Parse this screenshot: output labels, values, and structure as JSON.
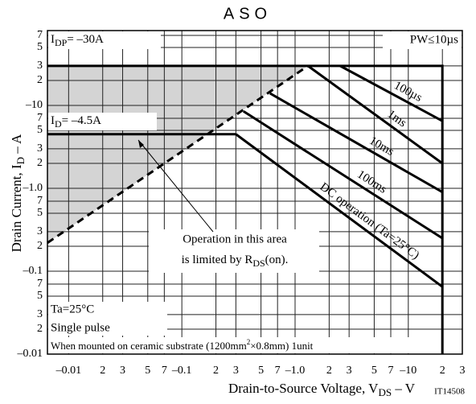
{
  "chart_data": {
    "type": "line",
    "title": "ASO",
    "xlabel": [
      "Drain-to-Source Voltage, V",
      "DS",
      " – V"
    ],
    "ylabel": [
      "Drain Current, I",
      "D",
      " – A"
    ],
    "x_scale": "log",
    "y_scale": "log",
    "xlim": [
      0.0065,
      30
    ],
    "ylim": [
      0.01,
      80
    ],
    "xticks": [
      {
        "value": 0.01,
        "label": "–0.01"
      },
      {
        "value": 0.02,
        "label": "2"
      },
      {
        "value": 0.03,
        "label": "3"
      },
      {
        "value": 0.05,
        "label": "5"
      },
      {
        "value": 0.07,
        "label": "7"
      },
      {
        "value": 0.1,
        "label": "–0.1"
      },
      {
        "value": 0.2,
        "label": "2"
      },
      {
        "value": 0.3,
        "label": "3"
      },
      {
        "value": 0.5,
        "label": "5"
      },
      {
        "value": 0.7,
        "label": "7"
      },
      {
        "value": 1,
        "label": "–1.0"
      },
      2,
      3,
      5,
      7,
      {
        "value": 10,
        "label": "–10"
      },
      {
        "value": 20,
        "label": "2"
      },
      {
        "value": 30,
        "label": "3"
      }
    ],
    "yticks": [
      {
        "value": 0.01,
        "label": "–0.01"
      },
      {
        "value": 0.02,
        "label": "2"
      },
      {
        "value": 0.03,
        "label": "3"
      },
      {
        "value": 0.05,
        "label": "5"
      },
      {
        "value": 0.07,
        "label": "7"
      },
      {
        "value": 0.1,
        "label": "–0.1"
      },
      {
        "value": 0.2,
        "label": "2"
      },
      {
        "value": 0.3,
        "label": "3"
      },
      {
        "value": 0.5,
        "label": "5"
      },
      {
        "value": 0.7,
        "label": "7"
      },
      {
        "value": 1,
        "label": "–1.0"
      },
      2,
      3,
      5,
      7,
      {
        "value": 10,
        "label": "–10"
      },
      {
        "value": 20,
        "label": "2"
      },
      {
        "value": 30,
        "label": "3"
      },
      {
        "value": 50,
        "label": "5"
      },
      {
        "value": 70,
        "label": "7"
      }
    ],
    "grid": true,
    "color": "#000000",
    "shade_color": "#d4d4d4",
    "series": [
      {
        "x": [
          0.0065,
          20,
          20
        ],
        "values": [
          30,
          30,
          0.01
        ]
      },
      {
        "x": [
          0.0065,
          1.3
        ],
        "values": [
          0.22,
          30
        ],
        "dashed": true
      },
      {
        "x": [
          0.0065,
          0.3
        ],
        "values": [
          4.5,
          4.5
        ]
      },
      {
        "name": "100µs",
        "x": [
          2.5,
          20
        ],
        "values": [
          30,
          6.5
        ]
      },
      {
        "name": "1ms",
        "x": [
          1.3,
          20
        ],
        "values": [
          30,
          2.0
        ]
      },
      {
        "name": "10ms",
        "x": [
          0.6,
          20
        ],
        "values": [
          14,
          0.9
        ]
      },
      {
        "name": "100ms",
        "x": [
          0.35,
          20
        ],
        "values": [
          8.5,
          0.25
        ]
      },
      {
        "name": "DC operation (Ta=25°C)",
        "x": [
          0.3,
          20
        ],
        "values": [
          4.5,
          0.065
        ]
      }
    ],
    "annotations": {
      "idp": [
        "I",
        "DP",
        "= –30A"
      ],
      "pw": "PW≤10µs",
      "id": [
        "I",
        "D",
        "= –4.5A"
      ],
      "area": [
        "Operation in this area",
        "is limited by R",
        "DS",
        "(on)."
      ],
      "conditions": [
        "Ta=25°C",
        "Single pulse"
      ],
      "mount": [
        "When mounted on ceramic substrate (1200mm",
        "2",
        "×0.8mm) 1unit"
      ],
      "code": "IT14508"
    }
  }
}
